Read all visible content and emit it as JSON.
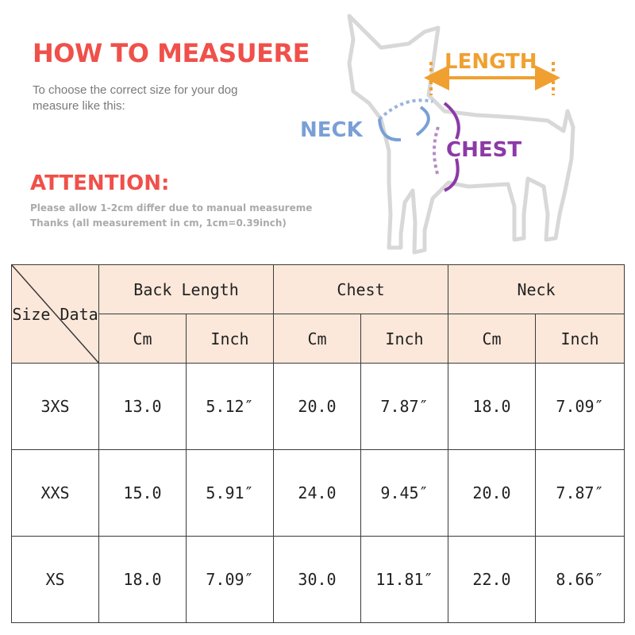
{
  "header": {
    "title": "HOW TO MEASUERE",
    "subtitle_lines": [
      "To choose the correct size for your dog",
      "measure like this:"
    ],
    "attention_title": "ATTENTION:",
    "note_line1": "Please allow 1-2cm differ due to manual measureme",
    "note_line2": "Thanks (all measurement in cm, 1cm=0.39inch)"
  },
  "diagram": {
    "length_label": "LENGTH",
    "neck_label": "NECK",
    "chest_label": "CHEST"
  },
  "colors": {
    "title": "#f0504a",
    "length": "#f0a030",
    "neck": "#7a9fd6",
    "chest": "#8b3aa6",
    "header_bg": "#fbe8da"
  },
  "table": {
    "corner_label": "Size Data",
    "groups": [
      "Back Length",
      "Chest",
      "Neck"
    ],
    "units": [
      "Cm",
      "Inch",
      "Cm",
      "Inch",
      "Cm",
      "Inch"
    ],
    "rows": [
      {
        "size": "3XS",
        "values": [
          "13.0",
          "5.12″",
          "20.0",
          "7.87″",
          "18.0",
          "7.09″"
        ]
      },
      {
        "size": "XXS",
        "values": [
          "15.0",
          "5.91″",
          "24.0",
          "9.45″",
          "20.0",
          "7.87″"
        ]
      },
      {
        "size": "XS",
        "values": [
          "18.0",
          "7.09″",
          "30.0",
          "11.81″",
          "22.0",
          "8.66″"
        ]
      }
    ]
  }
}
